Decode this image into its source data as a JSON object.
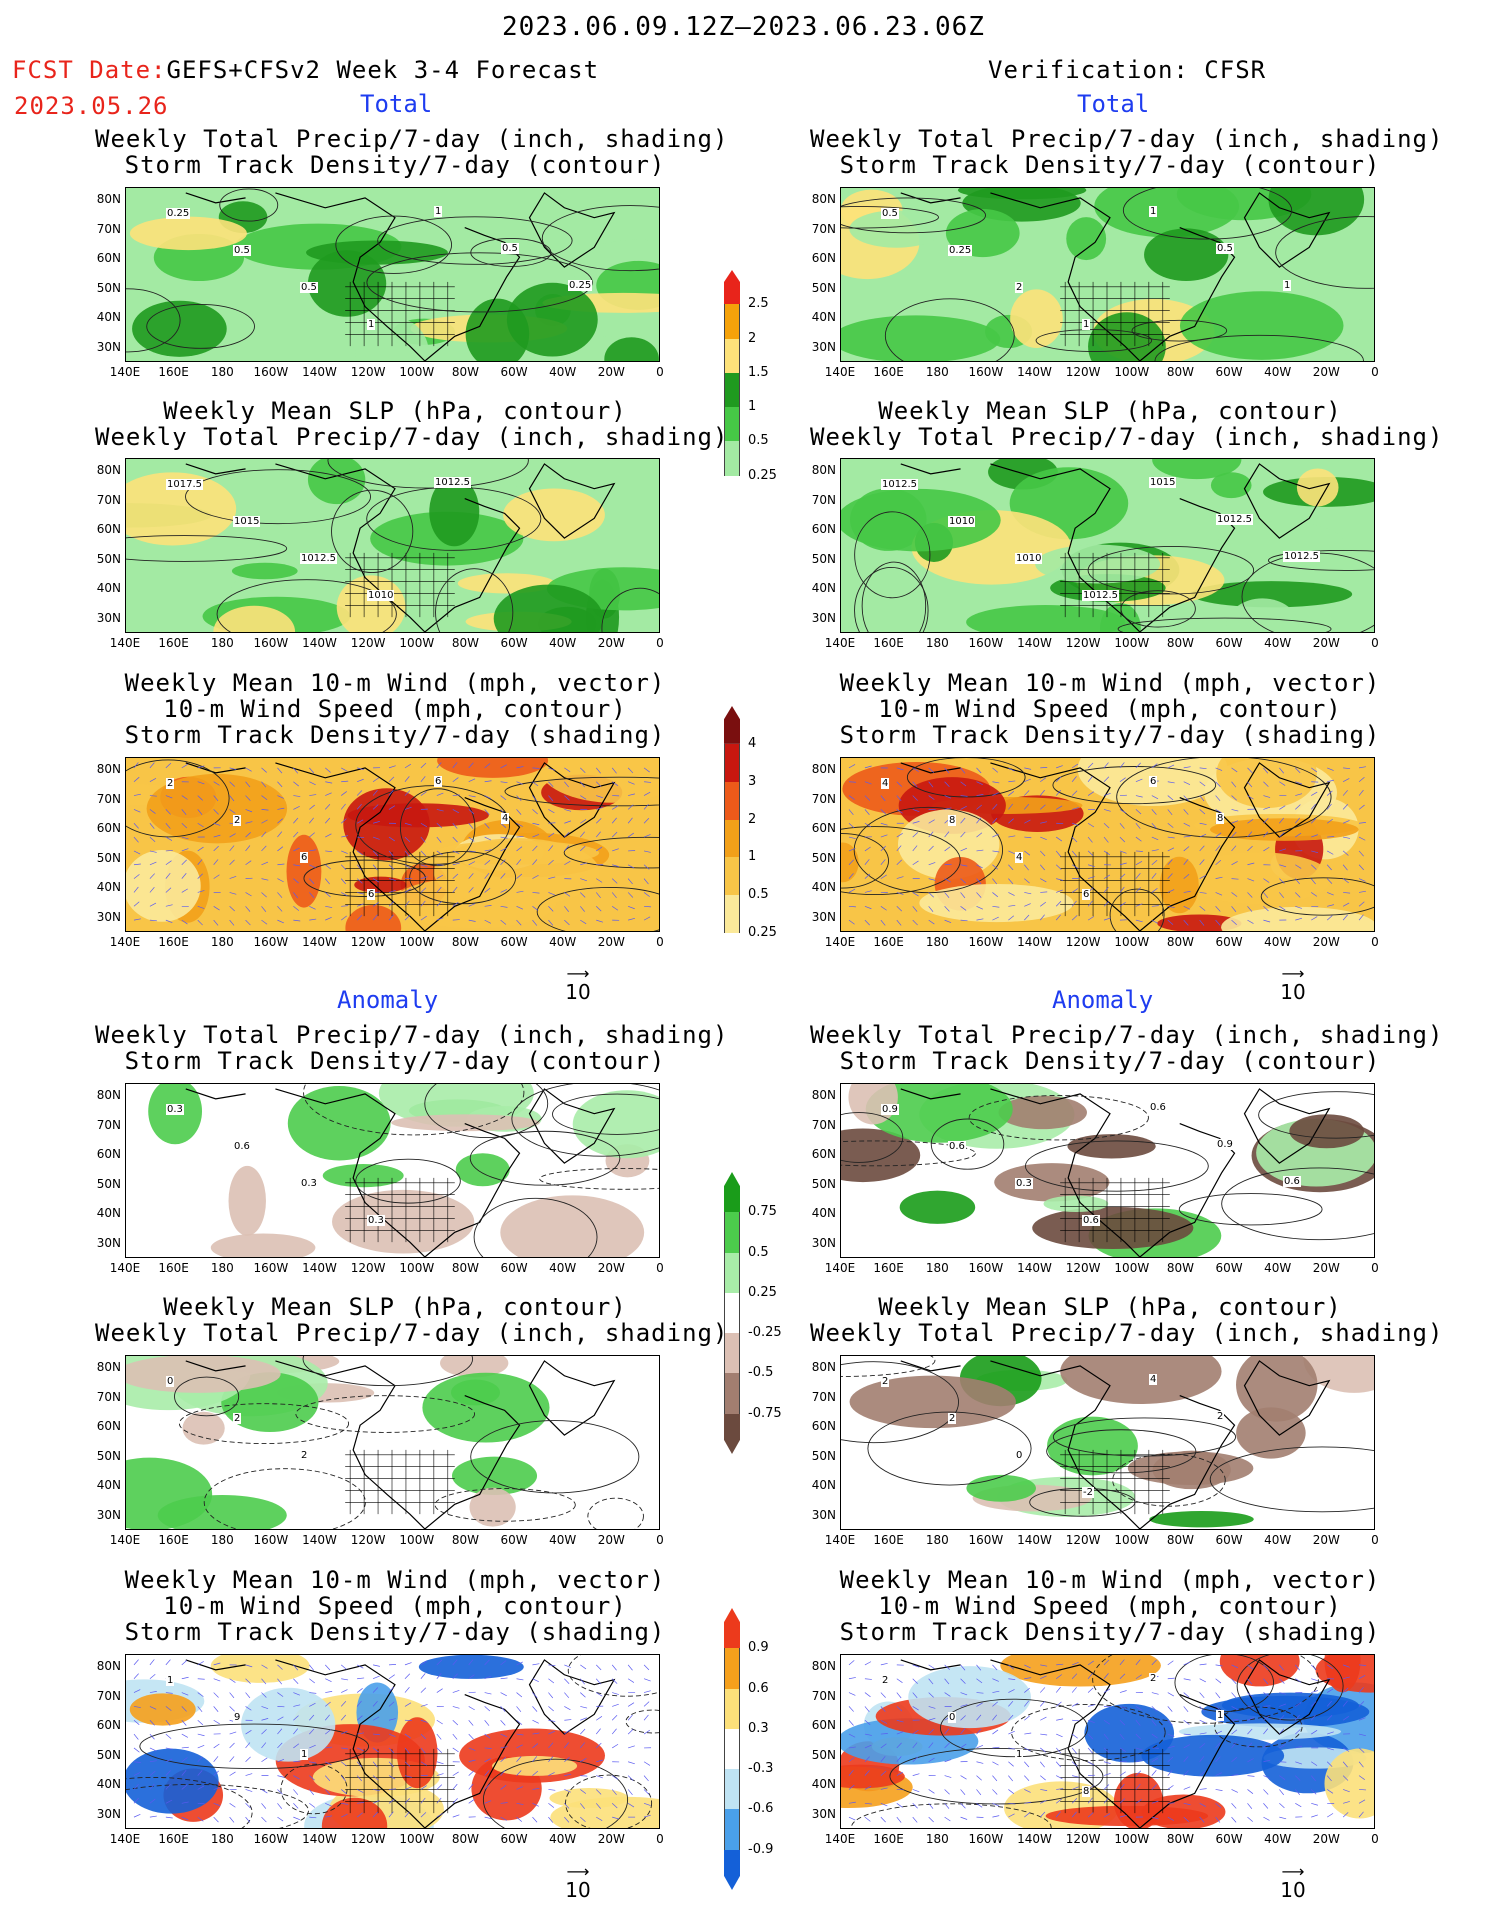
{
  "header": {
    "date_range": "2023.06.09.12Z–2023.06.23.06Z",
    "fcst_label": "FCST Date:",
    "fcst_model": "GEFS+CFSv2 Week 3-4 Forecast",
    "fcst_date": "2023.05.26",
    "verification": "Verification: CFSR"
  },
  "sections": {
    "total": "Total",
    "anomaly": "Anomaly"
  },
  "titles": {
    "precip_storm": [
      "Weekly Total Precip/7-day (inch, shading)",
      "Storm Track Density/7-day (contour)"
    ],
    "slp_precip": [
      "Weekly Mean SLP (hPa, contour)",
      "Weekly Total Precip/7-day (inch, shading)"
    ],
    "wind_storm": [
      "Weekly Mean 10-m Wind (mph, vector)",
      "10-m Wind Speed (mph, contour)",
      "Storm Track Density/7-day (shading)"
    ]
  },
  "axes": {
    "lat": [
      "80N",
      "70N",
      "60N",
      "50N",
      "40N",
      "30N"
    ],
    "lon": [
      "140E",
      "160E",
      "180",
      "160W",
      "140W",
      "120W",
      "100W",
      "80W",
      "60W",
      "40W",
      "20W",
      "0"
    ]
  },
  "colorbars": {
    "precip_total": {
      "labels": [
        "2.5",
        "2",
        "1.5",
        "1",
        "0.5",
        "0.25"
      ],
      "colors": [
        "#e8241b",
        "#f5a20a",
        "#fde27a",
        "#1f9a1f",
        "#46c846",
        "#a3eaa3",
        "#ffffff"
      ]
    },
    "storm_total": {
      "labels": [
        "4",
        "3",
        "2",
        "1",
        "0.5",
        "0.25"
      ],
      "colors": [
        "#7a0f0f",
        "#c8170f",
        "#ec5a1a",
        "#f2a019",
        "#f8c547",
        "#fbe99a",
        "#ffffff"
      ]
    },
    "precip_anom": {
      "labels": [
        "0.75",
        "0.5",
        "0.25",
        "-0.25",
        "-0.5",
        "-0.75"
      ],
      "colors": [
        "#1a9c1a",
        "#4ccc4c",
        "#a8eca8",
        "#ffffff",
        "#dcc0b4",
        "#a27e70",
        "#6b4a3e"
      ]
    },
    "storm_anom": {
      "labels": [
        "0.9",
        "0.6",
        "0.3",
        "-0.3",
        "-0.6",
        "-0.9"
      ],
      "colors": [
        "#ec3a1c",
        "#f5a01c",
        "#fce07a",
        "#ffffff",
        "#bfe3f3",
        "#4aa0ea",
        "#1460d8"
      ]
    }
  },
  "vector_ref": "10",
  "contour_labels": {
    "p1_left": [
      "0.25",
      "0.5",
      "0.5",
      "1",
      "1",
      "0.5",
      "0.25"
    ],
    "p1_right": [
      "0.5",
      "0.25",
      "2",
      "1",
      "1",
      "0.5",
      "1"
    ],
    "p2_left": [
      "1017.5",
      "1015",
      "1012.5",
      "1010",
      "1012.5"
    ],
    "p2_right": [
      "1012.5",
      "1010",
      "1010",
      "1012.5",
      "1015",
      "1012.5",
      "1012.5"
    ],
    "p3_left": [
      "2",
      "2",
      "6",
      "6",
      "6",
      "4"
    ],
    "p3_right": [
      "4",
      "8",
      "4",
      "6",
      "6",
      "8"
    ],
    "p4_left": [
      "0.3",
      "0.6",
      "0.3",
      "0.3"
    ],
    "p4_right": [
      "0.9",
      "0.6",
      "0.3",
      "0.6",
      "0.6",
      "0.9",
      "0.6"
    ],
    "p5_left": [
      "0",
      "2",
      "2"
    ],
    "p5_right": [
      "2",
      "2",
      "0",
      "-2",
      "4",
      "2"
    ],
    "p6_left": [
      "1",
      "9",
      "1"
    ],
    "p6_right": [
      "2",
      "0",
      "1",
      "8",
      "2",
      "1"
    ]
  }
}
